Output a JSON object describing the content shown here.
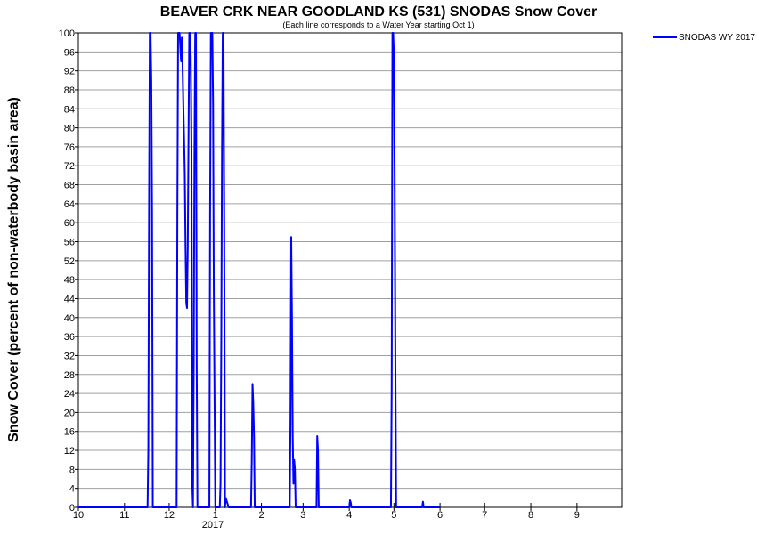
{
  "chart_data": {
    "type": "line",
    "title": "BEAVER CRK NEAR GOODLAND KS (531) SNODAS Snow Cover",
    "subtitle": "(Each line corresponds to a Water Year starting Oct 1)",
    "ylabel": "Snow Cover (percent of non-waterbody basin area)",
    "xlabel": "",
    "year_label": "2017",
    "ylim": [
      0,
      100
    ],
    "y_ticks": [
      0,
      4,
      8,
      12,
      16,
      20,
      24,
      28,
      32,
      36,
      40,
      44,
      48,
      52,
      56,
      60,
      64,
      68,
      72,
      76,
      80,
      84,
      88,
      92,
      96,
      100
    ],
    "xlim": [
      0,
      365
    ],
    "x_ticks": [
      {
        "label": "10",
        "value": 0
      },
      {
        "label": "11",
        "value": 31
      },
      {
        "label": "12",
        "value": 61
      },
      {
        "label": "1",
        "value": 92
      },
      {
        "label": "2",
        "value": 123
      },
      {
        "label": "3",
        "value": 151
      },
      {
        "label": "4",
        "value": 182
      },
      {
        "label": "5",
        "value": 212
      },
      {
        "label": "6",
        "value": 243
      },
      {
        "label": "7",
        "value": 273
      },
      {
        "label": "8",
        "value": 304
      },
      {
        "label": "9",
        "value": 335
      }
    ],
    "grid": true,
    "legend_position": "top-right",
    "series": [
      {
        "name": "SNODAS WY 2017",
        "color": "#0000ff",
        "points": [
          [
            0,
            0
          ],
          [
            31,
            0
          ],
          [
            46.5,
            0
          ],
          [
            47,
            12
          ],
          [
            47.5,
            62
          ],
          [
            48,
            100
          ],
          [
            48.5,
            100
          ],
          [
            49,
            90
          ],
          [
            49.5,
            62
          ],
          [
            50,
            0
          ],
          [
            66,
            0
          ],
          [
            66.5,
            62
          ],
          [
            67,
            100
          ],
          [
            68,
            100
          ],
          [
            68.5,
            97
          ],
          [
            69,
            94
          ],
          [
            69.5,
            99
          ],
          [
            70,
            93
          ],
          [
            70.5,
            85
          ],
          [
            71,
            78
          ],
          [
            71.5,
            70
          ],
          [
            72,
            55
          ],
          [
            72.5,
            43
          ],
          [
            73,
            42
          ],
          [
            73.5,
            55
          ],
          [
            74,
            78
          ],
          [
            74.5,
            100
          ],
          [
            75,
            100
          ],
          [
            75.5,
            95
          ],
          [
            76,
            75
          ],
          [
            76.5,
            5
          ],
          [
            77,
            0
          ],
          [
            77.5,
            30
          ],
          [
            78,
            75
          ],
          [
            78.5,
            100
          ],
          [
            79,
            100
          ],
          [
            79.5,
            30
          ],
          [
            80,
            0
          ],
          [
            88,
            0
          ],
          [
            88.5,
            62
          ],
          [
            89,
            100
          ],
          [
            90,
            100
          ],
          [
            90.5,
            85
          ],
          [
            91,
            45
          ],
          [
            92,
            0
          ],
          [
            95,
            0
          ],
          [
            95.5,
            5
          ],
          [
            96,
            35
          ],
          [
            96.5,
            75
          ],
          [
            97,
            100
          ],
          [
            97.5,
            100
          ],
          [
            98,
            60
          ],
          [
            98.5,
            0
          ],
          [
            99,
            2
          ],
          [
            100,
            1
          ],
          [
            101,
            0
          ],
          [
            116,
            0
          ],
          [
            116.5,
            10
          ],
          [
            117,
            26
          ],
          [
            117.5,
            22
          ],
          [
            118,
            15
          ],
          [
            118.5,
            0
          ],
          [
            142,
            0
          ],
          [
            142.5,
            18
          ],
          [
            143,
            57
          ],
          [
            143.5,
            40
          ],
          [
            144,
            15
          ],
          [
            144.5,
            5
          ],
          [
            145,
            10
          ],
          [
            145.5,
            8
          ],
          [
            146,
            0
          ],
          [
            160,
            0
          ],
          [
            160.5,
            15
          ],
          [
            161,
            12
          ],
          [
            161.5,
            0
          ],
          [
            182,
            0
          ],
          [
            182.5,
            1.5
          ],
          [
            183,
            1
          ],
          [
            183.5,
            0
          ],
          [
            210,
            0
          ],
          [
            210.5,
            25
          ],
          [
            211,
            100
          ],
          [
            211.5,
            100
          ],
          [
            212,
            95
          ],
          [
            212.5,
            70
          ],
          [
            213,
            30
          ],
          [
            213.5,
            0
          ],
          [
            231,
            0
          ],
          [
            231.5,
            1.2
          ],
          [
            232,
            0
          ],
          [
            243,
            0
          ]
        ]
      }
    ]
  }
}
